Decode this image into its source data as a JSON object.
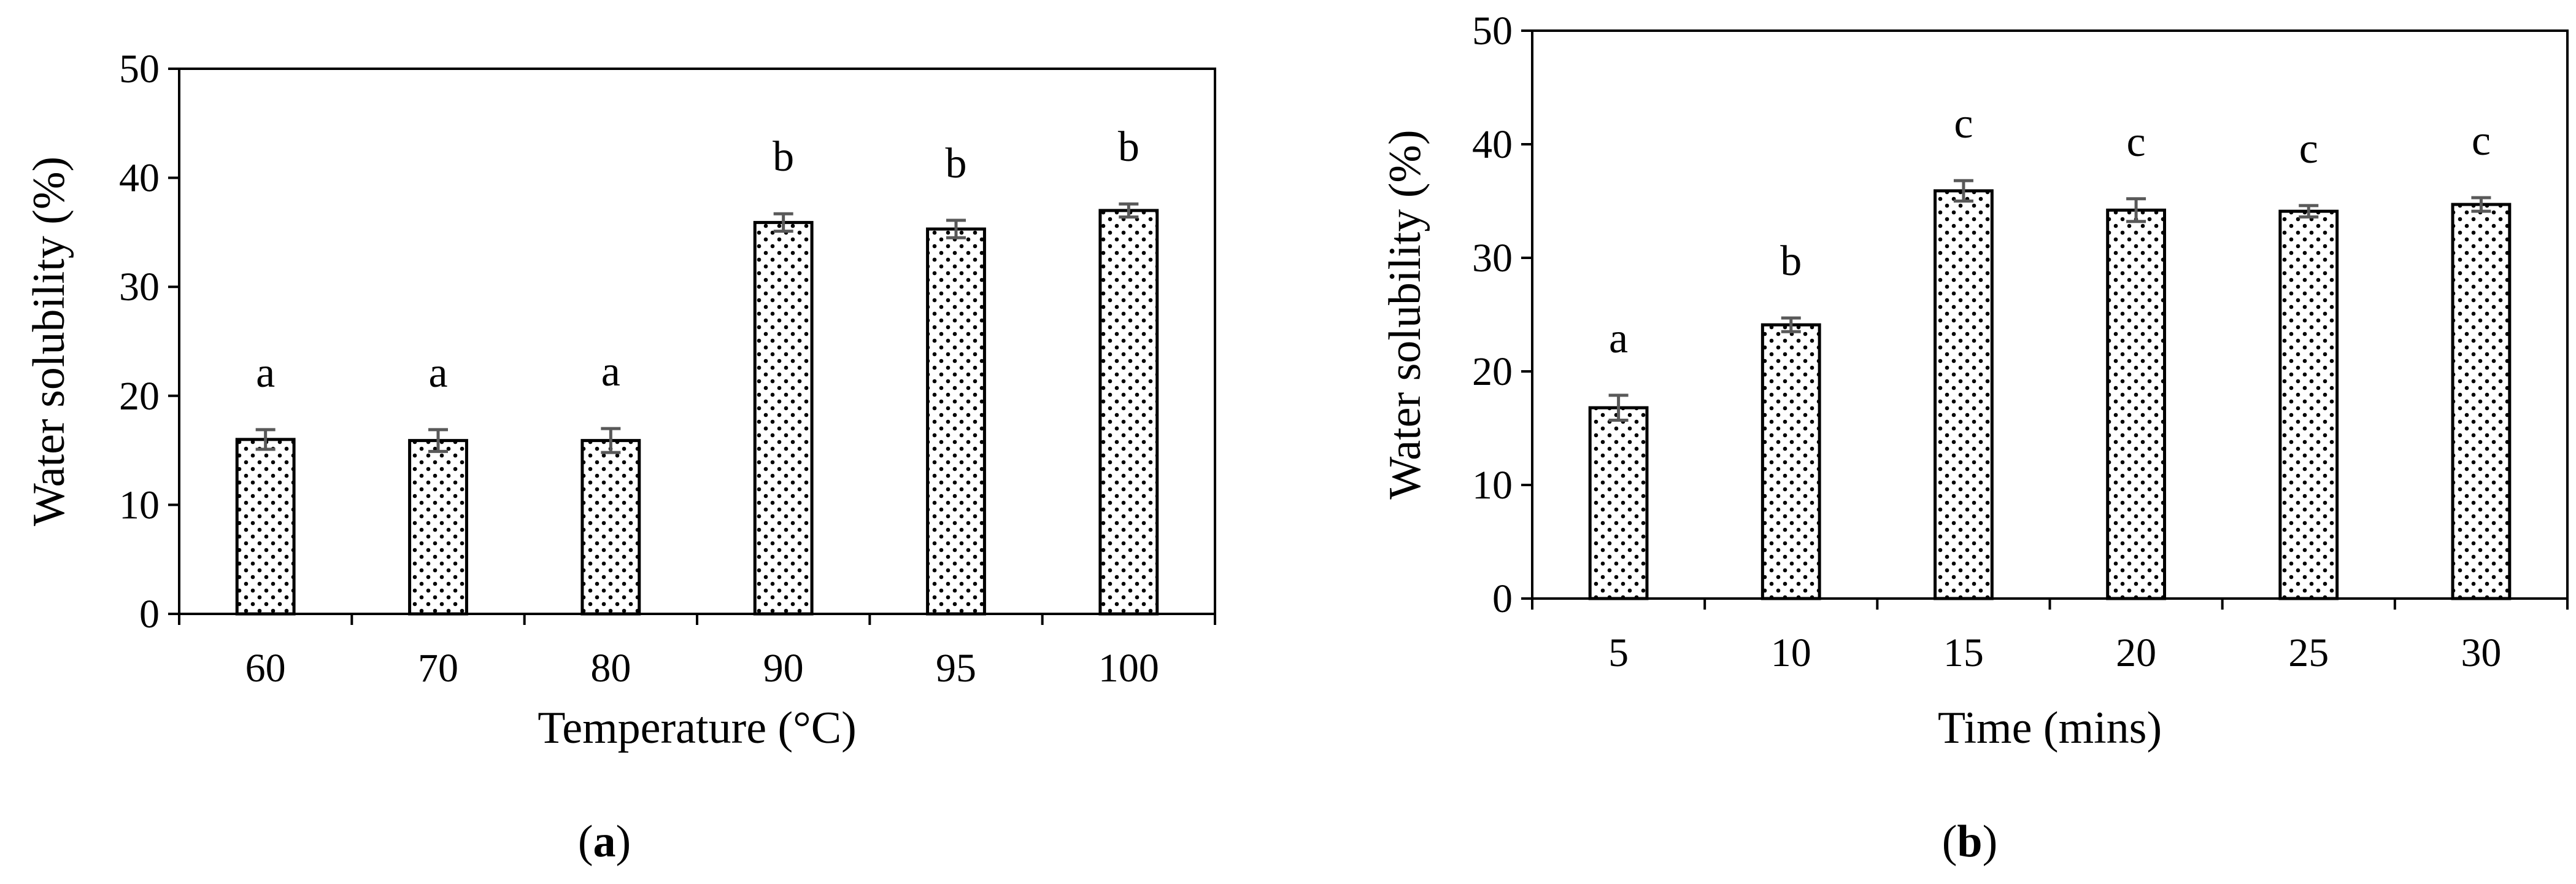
{
  "chart_data": [
    {
      "type": "bar",
      "panel_label": "a",
      "xlabel": "Temperature (°C)",
      "ylabel": "Water solubility (%)",
      "ylim": [
        0,
        50
      ],
      "yticks": [
        0,
        10,
        20,
        30,
        40,
        50
      ],
      "grid": false,
      "bar_pattern": "dotted",
      "categories": [
        "60",
        "70",
        "80",
        "90",
        "95",
        "100"
      ],
      "values": [
        16.0,
        15.9,
        15.9,
        35.9,
        35.3,
        37.0
      ],
      "errors": [
        0.9,
        1.0,
        1.1,
        0.8,
        0.8,
        0.6
      ],
      "significance_letters": [
        "a",
        "a",
        "a",
        "b",
        "b",
        "b"
      ]
    },
    {
      "type": "bar",
      "panel_label": "b",
      "xlabel": "Time (mins)",
      "ylabel": "Water solubility (%)",
      "ylim": [
        0,
        50
      ],
      "yticks": [
        0,
        10,
        20,
        30,
        40,
        50
      ],
      "grid": false,
      "bar_pattern": "dotted",
      "categories": [
        "5",
        "10",
        "15",
        "20",
        "25",
        "30"
      ],
      "values": [
        16.8,
        24.1,
        35.9,
        34.2,
        34.1,
        34.7
      ],
      "errors": [
        1.1,
        0.6,
        0.9,
        1.0,
        0.5,
        0.6
      ],
      "significance_letters": [
        "a",
        "b",
        "c",
        "c",
        "c",
        "c"
      ]
    }
  ]
}
